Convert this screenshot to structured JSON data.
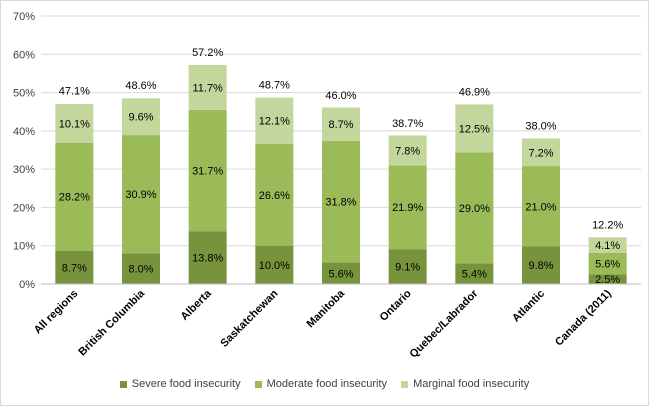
{
  "chart_data": {
    "type": "bar",
    "stacked": true,
    "title": "",
    "xlabel": "",
    "ylabel": "",
    "ylim": [
      0,
      70
    ],
    "y_ticks": [
      "0%",
      "10%",
      "20%",
      "30%",
      "40%",
      "50%",
      "60%",
      "70%"
    ],
    "grid": true,
    "legend_position": "bottom",
    "categories": [
      "All regions",
      "British Columbia",
      "Alberta",
      "Saskatchewan",
      "Manitoba",
      "Ontario",
      "Quebec/Labrador",
      "Atlantic",
      "Canada (2011)"
    ],
    "series": [
      {
        "name": "Severe food insecurity",
        "color": "#77933c",
        "values": [
          8.7,
          8.0,
          13.8,
          10.0,
          5.6,
          9.1,
          5.4,
          9.8,
          2.5
        ],
        "labels": [
          "8.7%",
          "8.0%",
          "13.8%",
          "10.0%",
          "5.6%",
          "9.1%",
          "5.4%",
          "9.8%",
          "2.5%"
        ]
      },
      {
        "name": "Moderate food insecurity",
        "color": "#9bbb59",
        "values": [
          28.2,
          30.9,
          31.7,
          26.6,
          31.8,
          21.9,
          29.0,
          21.0,
          5.6
        ],
        "labels": [
          "28.2%",
          "30.9%",
          "31.7%",
          "26.6%",
          "31.8%",
          "21.9%",
          "29.0%",
          "21.0%",
          "5.6%"
        ]
      },
      {
        "name": "Marginal food insecurity",
        "color": "#c3d69b",
        "values": [
          10.1,
          9.6,
          11.7,
          12.1,
          8.7,
          7.8,
          12.5,
          7.2,
          4.1
        ],
        "labels": [
          "10.1%",
          "9.6%",
          "11.7%",
          "12.1%",
          "8.7%",
          "7.8%",
          "12.5%",
          "7.2%",
          "4.1%"
        ]
      }
    ],
    "totals": [
      47.1,
      48.6,
      57.2,
      48.7,
      46.0,
      38.7,
      46.9,
      38.0,
      12.2
    ],
    "total_labels": [
      "47.1%",
      "48.6%",
      "57.2%",
      "48.7%",
      "46.0%",
      "38.7%",
      "46.9%",
      "38.0%",
      "12.2%"
    ]
  }
}
